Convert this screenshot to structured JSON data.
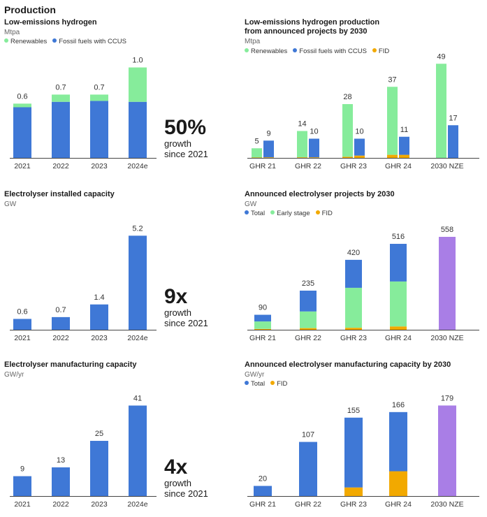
{
  "page_title": "Production",
  "colors": {
    "renewables": "#86ec9b",
    "fossil": "#3f78d6",
    "fid": "#f2a900",
    "total": "#3f78d6",
    "early": "#86ec9b",
    "nze": "#a97ee6",
    "axis": "#444444"
  },
  "growth": [
    {
      "big": "50%",
      "line1": "growth",
      "line2": "since 2021"
    },
    {
      "big": "9x",
      "line1": "growth",
      "line2": "since 2021"
    },
    {
      "big": "4x",
      "line1": "growth",
      "line2": "since 2021"
    }
  ],
  "chart_data": [
    {
      "id": "low-emissions-hydrogen",
      "type": "bar",
      "title": "Low-emissions hydrogen",
      "unit": "Mtpa",
      "legend": [
        {
          "name": "Renewables",
          "color": "#86ec9b"
        },
        {
          "name": "Fossil fuels with CCUS",
          "color": "#3f78d6"
        }
      ],
      "categories": [
        "2021",
        "2022",
        "2023",
        "2024e"
      ],
      "series": [
        {
          "name": "Fossil fuels with CCUS",
          "values": [
            0.56,
            0.62,
            0.63,
            0.62
          ],
          "color": "#3f78d6"
        },
        {
          "name": "Renewables",
          "values": [
            0.04,
            0.08,
            0.07,
            0.38
          ],
          "color": "#86ec9b"
        }
      ],
      "stacked": true,
      "totals": [
        "0.6",
        "0.7",
        "0.7",
        "1.0"
      ],
      "ylim": [
        0,
        1.12
      ]
    },
    {
      "id": "low-emissions-hydrogen-2030",
      "type": "bar",
      "title": "Low-emissions hydrogen production\nfrom announced projects by 2030",
      "unit": "Mtpa",
      "legend": [
        {
          "name": "Renewables",
          "color": "#86ec9b"
        },
        {
          "name": "Fossil fuels with CCUS",
          "color": "#3f78d6"
        },
        {
          "name": "FID",
          "color": "#f2a900"
        }
      ],
      "categories": [
        "GHR 21",
        "GHR 22",
        "GHR 23",
        "GHR 24",
        "2030 NZE"
      ],
      "groups": [
        {
          "category": "GHR 21",
          "bars": [
            {
              "label": "5",
              "segments": [
                {
                  "value": 0.2,
                  "color": "#f2a900"
                },
                {
                  "value": 4.8,
                  "color": "#86ec9b"
                }
              ]
            },
            {
              "label": "9",
              "segments": [
                {
                  "value": 0.3,
                  "color": "#f2a900"
                },
                {
                  "value": 8.7,
                  "color": "#3f78d6"
                }
              ]
            }
          ]
        },
        {
          "category": "GHR 22",
          "bars": [
            {
              "label": "14",
              "segments": [
                {
                  "value": 0.3,
                  "color": "#f2a900"
                },
                {
                  "value": 13.7,
                  "color": "#86ec9b"
                }
              ]
            },
            {
              "label": "10",
              "segments": [
                {
                  "value": 0.3,
                  "color": "#f2a900"
                },
                {
                  "value": 9.7,
                  "color": "#3f78d6"
                }
              ]
            }
          ]
        },
        {
          "category": "GHR 23",
          "bars": [
            {
              "label": "28",
              "segments": [
                {
                  "value": 0.6,
                  "color": "#f2a900"
                },
                {
                  "value": 27.4,
                  "color": "#86ec9b"
                }
              ]
            },
            {
              "label": "10",
              "segments": [
                {
                  "value": 1.2,
                  "color": "#f2a900"
                },
                {
                  "value": 8.8,
                  "color": "#3f78d6"
                }
              ]
            }
          ]
        },
        {
          "category": "GHR 24",
          "bars": [
            {
              "label": "37",
              "segments": [
                {
                  "value": 1.6,
                  "color": "#f2a900"
                },
                {
                  "value": 35.4,
                  "color": "#86ec9b"
                }
              ]
            },
            {
              "label": "11",
              "segments": [
                {
                  "value": 1.6,
                  "color": "#f2a900"
                },
                {
                  "value": 9.4,
                  "color": "#3f78d6"
                }
              ]
            }
          ]
        },
        {
          "category": "2030 NZE",
          "bars": [
            {
              "label": "49",
              "segments": [
                {
                  "value": 49,
                  "color": "#86ec9b"
                }
              ]
            },
            {
              "label": "17",
              "segments": [
                {
                  "value": 17,
                  "color": "#3f78d6"
                }
              ]
            }
          ]
        }
      ],
      "ylim": [
        0,
        52
      ]
    },
    {
      "id": "electrolyser-installed",
      "type": "bar",
      "title": "Electrolyser installed capacity",
      "unit": "GW",
      "categories": [
        "2021",
        "2022",
        "2023",
        "2024e"
      ],
      "values": [
        0.6,
        0.7,
        1.4,
        5.2
      ],
      "labels": [
        "0.6",
        "0.7",
        "1.4",
        "5.2"
      ],
      "color": "#3f78d6",
      "ylim": [
        0,
        5.6
      ]
    },
    {
      "id": "electrolyser-projects-2030",
      "type": "bar",
      "title": "Announced electrolyser projects by 2030",
      "unit": "GW",
      "legend": [
        {
          "name": "Total",
          "color": "#3f78d6"
        },
        {
          "name": "Early stage",
          "color": "#86ec9b"
        },
        {
          "name": "FID",
          "color": "#f2a900"
        }
      ],
      "categories": [
        "GHR 21",
        "GHR 22",
        "GHR 23",
        "GHR 24",
        "2030 NZE"
      ],
      "stacks": [
        {
          "label": "90",
          "segments": [
            {
              "value": 5,
              "color": "#f2a900"
            },
            {
              "value": 45,
              "color": "#86ec9b"
            },
            {
              "value": 40,
              "color": "#3f78d6"
            }
          ]
        },
        {
          "label": "235",
          "segments": [
            {
              "value": 10,
              "color": "#f2a900"
            },
            {
              "value": 100,
              "color": "#86ec9b"
            },
            {
              "value": 125,
              "color": "#3f78d6"
            }
          ]
        },
        {
          "label": "420",
          "segments": [
            {
              "value": 12,
              "color": "#f2a900"
            },
            {
              "value": 240,
              "color": "#86ec9b"
            },
            {
              "value": 168,
              "color": "#3f78d6"
            }
          ]
        },
        {
          "label": "516",
          "segments": [
            {
              "value": 20,
              "color": "#f2a900"
            },
            {
              "value": 270,
              "color": "#86ec9b"
            },
            {
              "value": 226,
              "color": "#3f78d6"
            }
          ]
        },
        {
          "label": "558",
          "segments": [
            {
              "value": 558,
              "color": "#a97ee6"
            }
          ]
        }
      ],
      "ylim": [
        0,
        600
      ]
    },
    {
      "id": "electrolyser-manufacturing",
      "type": "bar",
      "title": "Electrolyser manufacturing capacity",
      "unit": "GW/yr",
      "categories": [
        "2021",
        "2022",
        "2023",
        "2024e"
      ],
      "values": [
        9,
        13,
        25,
        41
      ],
      "labels": [
        "9",
        "13",
        "25",
        "41"
      ],
      "color": "#3f78d6",
      "ylim": [
        0,
        44
      ]
    },
    {
      "id": "electrolyser-manufacturing-2030",
      "type": "bar",
      "title": "Announced electrolyser manufacturing capacity by 2030",
      "unit": "GW/yr",
      "legend": [
        {
          "name": "Total",
          "color": "#3f78d6"
        },
        {
          "name": "FID",
          "color": "#f2a900"
        }
      ],
      "categories": [
        "GHR 21",
        "GHR 22",
        "GHR 23",
        "GHR 24",
        "2030 NZE"
      ],
      "stacks": [
        {
          "label": "20",
          "segments": [
            {
              "value": 20,
              "color": "#3f78d6"
            }
          ]
        },
        {
          "label": "107",
          "segments": [
            {
              "value": 107,
              "color": "#3f78d6"
            }
          ]
        },
        {
          "label": "155",
          "segments": [
            {
              "value": 17,
              "color": "#f2a900"
            },
            {
              "value": 138,
              "color": "#3f78d6"
            }
          ]
        },
        {
          "label": "166",
          "segments": [
            {
              "value": 49,
              "color": "#f2a900"
            },
            {
              "value": 117,
              "color": "#3f78d6"
            }
          ]
        },
        {
          "label": "179",
          "segments": [
            {
              "value": 179,
              "color": "#a97ee6"
            }
          ]
        }
      ],
      "ylim": [
        0,
        192
      ]
    }
  ]
}
